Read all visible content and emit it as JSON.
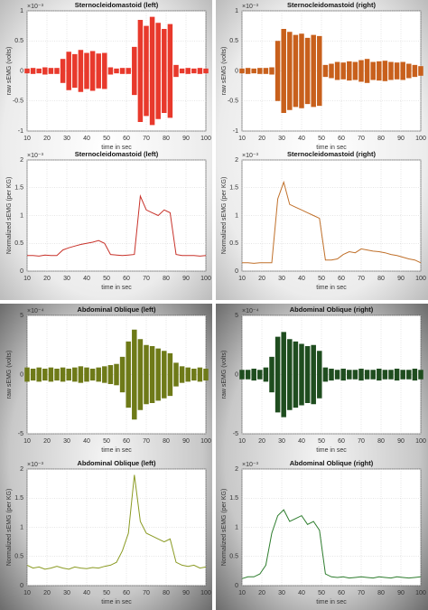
{
  "chart_data": [
    {
      "type": "envelope",
      "title": "Sternocleidomastoid (left)",
      "xlabel": "time in sec",
      "ylabel": "raw sEMG (volts)",
      "exponent": "×10⁻³",
      "color": "#e8392c",
      "x": [
        10,
        13,
        16,
        19,
        22,
        25,
        28,
        31,
        34,
        37,
        40,
        43,
        46,
        49,
        52,
        55,
        58,
        61,
        64,
        67,
        70,
        73,
        76,
        79,
        82,
        85,
        88,
        91,
        94,
        97,
        100
      ],
      "values": [
        0.04,
        0.05,
        0.04,
        0.06,
        0.05,
        0.05,
        0.2,
        0.32,
        0.28,
        0.35,
        0.3,
        0.33,
        0.29,
        0.3,
        0.06,
        0.04,
        0.05,
        0.05,
        0.4,
        0.85,
        0.75,
        0.9,
        0.8,
        0.7,
        0.78,
        0.1,
        0.04,
        0.05,
        0.04,
        0.05,
        0.04
      ],
      "xlim": [
        10,
        100
      ],
      "ylim": [
        -1,
        1
      ],
      "xticks": [
        10,
        20,
        30,
        40,
        50,
        60,
        70,
        80,
        90,
        100
      ],
      "yticks": [
        -1,
        -0.5,
        0,
        0.5,
        1
      ],
      "grid": true
    },
    {
      "type": "line",
      "title": "Sternocleidomastoid (left)",
      "xlabel": "time in sec",
      "ylabel": "Normalized sEMG (per KG)",
      "exponent": "×10⁻³",
      "color": "#c8322a",
      "x": [
        10,
        13,
        16,
        19,
        22,
        25,
        28,
        31,
        34,
        37,
        40,
        43,
        46,
        49,
        52,
        55,
        58,
        61,
        64,
        67,
        70,
        73,
        76,
        79,
        82,
        85,
        88,
        91,
        94,
        97,
        100
      ],
      "values": [
        0.28,
        0.28,
        0.27,
        0.29,
        0.28,
        0.28,
        0.38,
        0.42,
        0.45,
        0.48,
        0.5,
        0.52,
        0.55,
        0.5,
        0.3,
        0.29,
        0.28,
        0.29,
        0.3,
        1.35,
        1.1,
        1.05,
        1.0,
        1.1,
        1.05,
        0.3,
        0.28,
        0.28,
        0.28,
        0.27,
        0.28
      ],
      "xlim": [
        10,
        100
      ],
      "ylim": [
        0,
        2
      ],
      "xticks": [
        10,
        20,
        30,
        40,
        50,
        60,
        70,
        80,
        90,
        100
      ],
      "yticks": [
        0,
        0.5,
        1,
        1.5,
        2
      ],
      "grid": true
    },
    {
      "type": "envelope",
      "title": "Sternocleidomastoid (right)",
      "xlabel": "time in sec",
      "ylabel": "raw sEMG (volts)",
      "exponent": "×10⁻³",
      "color": "#c8601c",
      "x": [
        10,
        13,
        16,
        19,
        22,
        25,
        28,
        31,
        34,
        37,
        40,
        43,
        46,
        49,
        52,
        55,
        58,
        61,
        64,
        67,
        70,
        73,
        76,
        79,
        82,
        85,
        88,
        91,
        94,
        97,
        100
      ],
      "values": [
        0.04,
        0.05,
        0.04,
        0.05,
        0.05,
        0.06,
        0.5,
        0.7,
        0.65,
        0.6,
        0.62,
        0.55,
        0.6,
        0.58,
        0.1,
        0.12,
        0.15,
        0.14,
        0.16,
        0.15,
        0.18,
        0.2,
        0.15,
        0.16,
        0.17,
        0.15,
        0.14,
        0.15,
        0.12,
        0.1,
        0.08
      ],
      "xlim": [
        10,
        100
      ],
      "ylim": [
        -1,
        1
      ],
      "xticks": [
        10,
        20,
        30,
        40,
        50,
        60,
        70,
        80,
        90,
        100
      ],
      "yticks": [
        -1,
        -0.5,
        0,
        0.5,
        1
      ],
      "grid": true
    },
    {
      "type": "line",
      "title": "Sternocleidomastoid (right)",
      "xlabel": "time in sec",
      "ylabel": "Normalized sEMG (per KG)",
      "exponent": "×10⁻³",
      "color": "#c0702a",
      "x": [
        10,
        13,
        16,
        19,
        22,
        25,
        28,
        31,
        34,
        37,
        40,
        43,
        46,
        49,
        52,
        55,
        58,
        61,
        64,
        67,
        70,
        73,
        76,
        79,
        82,
        85,
        88,
        91,
        94,
        97,
        100
      ],
      "values": [
        0.15,
        0.15,
        0.14,
        0.15,
        0.15,
        0.15,
        1.3,
        1.6,
        1.2,
        1.15,
        1.1,
        1.05,
        1.0,
        0.95,
        0.2,
        0.2,
        0.22,
        0.3,
        0.35,
        0.33,
        0.4,
        0.38,
        0.36,
        0.35,
        0.33,
        0.3,
        0.28,
        0.25,
        0.22,
        0.2,
        0.15
      ],
      "xlim": [
        10,
        100
      ],
      "ylim": [
        0,
        2
      ],
      "xticks": [
        10,
        20,
        30,
        40,
        50,
        60,
        70,
        80,
        90,
        100
      ],
      "yticks": [
        0,
        0.5,
        1,
        1.5,
        2
      ],
      "grid": true
    },
    {
      "type": "envelope",
      "title": "Abdominal Oblique (left)",
      "xlabel": "time in sec",
      "ylabel": "raw sEMG (volts)",
      "exponent": "×10⁻⁴",
      "color": "#6e7a18",
      "x": [
        10,
        13,
        16,
        19,
        22,
        25,
        28,
        31,
        34,
        37,
        40,
        43,
        46,
        49,
        52,
        55,
        58,
        61,
        64,
        67,
        70,
        73,
        76,
        79,
        82,
        85,
        88,
        91,
        94,
        97,
        100
      ],
      "values": [
        0.6,
        0.5,
        0.6,
        0.5,
        0.6,
        0.5,
        0.6,
        0.5,
        0.6,
        0.7,
        0.6,
        0.5,
        0.6,
        0.7,
        0.8,
        0.9,
        1.5,
        2.8,
        3.8,
        3.0,
        2.5,
        2.4,
        2.2,
        2.0,
        1.8,
        1.0,
        0.7,
        0.6,
        0.5,
        0.6,
        0.5
      ],
      "xlim": [
        10,
        100
      ],
      "ylim": [
        -5,
        5
      ],
      "xticks": [
        10,
        20,
        30,
        40,
        50,
        60,
        70,
        80,
        90,
        100
      ],
      "yticks": [
        -5,
        0,
        5
      ],
      "grid": true
    },
    {
      "type": "line",
      "title": "Abdominal Oblique (left)",
      "xlabel": "time in sec",
      "ylabel": "Normalized sEMG (per KG)",
      "exponent": "×10⁻³",
      "color": "#8a9a22",
      "x": [
        10,
        13,
        16,
        19,
        22,
        25,
        28,
        31,
        34,
        37,
        40,
        43,
        46,
        49,
        52,
        55,
        58,
        61,
        64,
        67,
        70,
        73,
        76,
        79,
        82,
        85,
        88,
        91,
        94,
        97,
        100
      ],
      "values": [
        0.35,
        0.3,
        0.32,
        0.28,
        0.3,
        0.33,
        0.3,
        0.28,
        0.32,
        0.3,
        0.29,
        0.31,
        0.3,
        0.33,
        0.35,
        0.4,
        0.6,
        0.9,
        1.9,
        1.1,
        0.9,
        0.85,
        0.8,
        0.75,
        0.8,
        0.4,
        0.35,
        0.33,
        0.35,
        0.3,
        0.32
      ],
      "xlim": [
        10,
        100
      ],
      "ylim": [
        0,
        2
      ],
      "xticks": [
        10,
        20,
        30,
        40,
        50,
        60,
        70,
        80,
        90,
        100
      ],
      "yticks": [
        0,
        0.5,
        1,
        1.5,
        2
      ],
      "grid": true
    },
    {
      "type": "envelope",
      "title": "Abdominal Oblique (right)",
      "xlabel": "time in sec",
      "ylabel": "raw sEMG (volts)",
      "exponent": "×10⁻⁴",
      "color": "#1f4d1f",
      "x": [
        10,
        13,
        16,
        19,
        22,
        25,
        28,
        31,
        34,
        37,
        40,
        43,
        46,
        49,
        52,
        55,
        58,
        61,
        64,
        67,
        70,
        73,
        76,
        79,
        82,
        85,
        88,
        91,
        94,
        97,
        100
      ],
      "values": [
        0.4,
        0.4,
        0.5,
        0.4,
        0.6,
        1.5,
        3.2,
        3.6,
        3.0,
        2.8,
        2.6,
        2.4,
        2.5,
        2.0,
        0.6,
        0.5,
        0.4,
        0.5,
        0.4,
        0.4,
        0.5,
        0.4,
        0.4,
        0.5,
        0.4,
        0.4,
        0.5,
        0.4,
        0.4,
        0.5,
        0.4
      ],
      "xlim": [
        10,
        100
      ],
      "ylim": [
        -5,
        5
      ],
      "xticks": [
        10,
        20,
        30,
        40,
        50,
        60,
        70,
        80,
        90,
        100
      ],
      "yticks": [
        -5,
        0,
        5
      ],
      "grid": true
    },
    {
      "type": "line",
      "title": "Abdominal Oblique (right)",
      "xlabel": "time in sec",
      "ylabel": "Normalized sEMG (per KG)",
      "exponent": "×10⁻³",
      "color": "#2e7d2e",
      "x": [
        10,
        13,
        16,
        19,
        22,
        25,
        28,
        31,
        34,
        37,
        40,
        43,
        46,
        49,
        52,
        55,
        58,
        61,
        64,
        67,
        70,
        73,
        76,
        79,
        82,
        85,
        88,
        91,
        94,
        97,
        100
      ],
      "values": [
        0.12,
        0.15,
        0.15,
        0.2,
        0.35,
        0.9,
        1.2,
        1.3,
        1.1,
        1.15,
        1.2,
        1.05,
        1.1,
        0.95,
        0.2,
        0.15,
        0.14,
        0.15,
        0.13,
        0.14,
        0.15,
        0.14,
        0.13,
        0.15,
        0.14,
        0.13,
        0.15,
        0.14,
        0.13,
        0.14,
        0.15
      ],
      "xlim": [
        10,
        100
      ],
      "ylim": [
        0,
        2
      ],
      "xticks": [
        10,
        20,
        30,
        40,
        50,
        60,
        70,
        80,
        90,
        100
      ],
      "yticks": [
        0,
        0.5,
        1,
        1.5,
        2
      ],
      "grid": true
    }
  ]
}
